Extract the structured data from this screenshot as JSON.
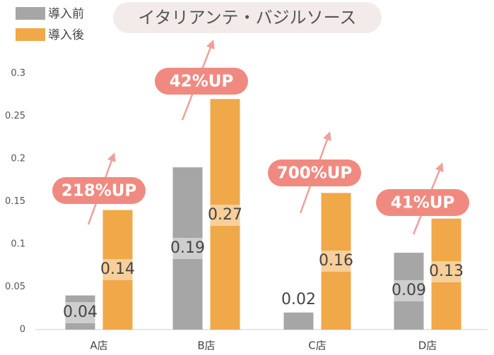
{
  "chart_data": {
    "type": "bar",
    "title": "イタリアンテ・バジルソース",
    "categories": [
      "A店",
      "B店",
      "C店",
      "D店"
    ],
    "series": [
      {
        "name": "導入前",
        "color": "#a6a6a6",
        "values": [
          0.04,
          0.19,
          0.02,
          0.09
        ]
      },
      {
        "name": "導入後",
        "color": "#f0a848",
        "values": [
          0.14,
          0.27,
          0.16,
          0.13
        ]
      }
    ],
    "annotations": [
      "218%UP",
      "42%UP",
      "700%UP",
      "41%UP"
    ],
    "annotation_color": "#f08a80",
    "ylim": [
      0,
      0.3
    ],
    "yticks": [
      0,
      0.05,
      0.1,
      0.15,
      0.2,
      0.25,
      0.3
    ],
    "grid": false
  }
}
